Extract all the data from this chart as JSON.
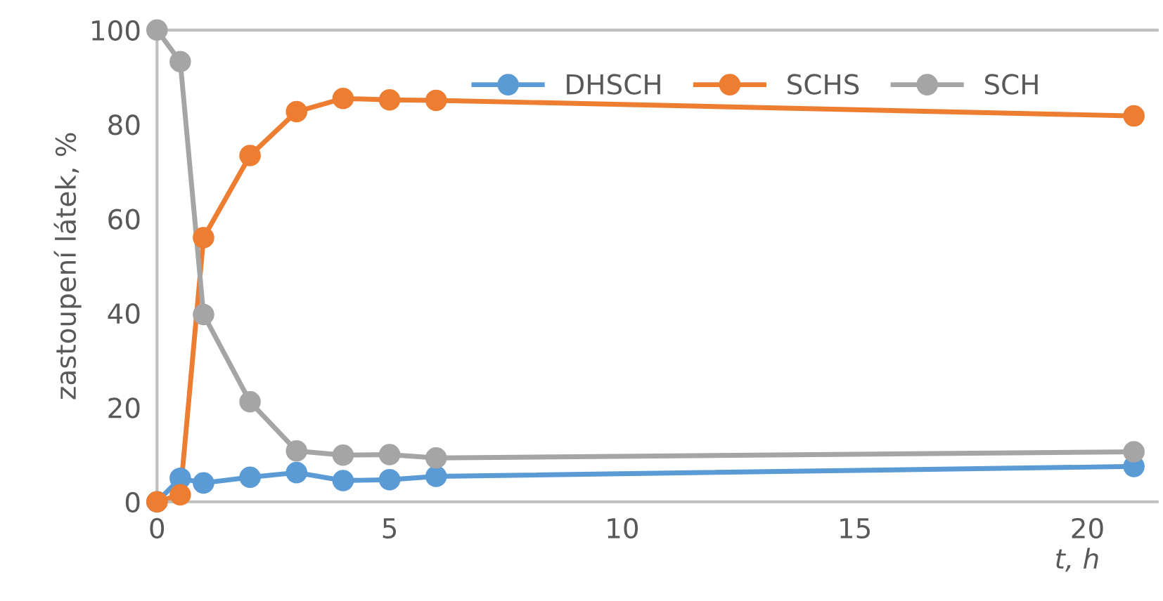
{
  "chart_data": {
    "type": "line",
    "xlabel": "t, h",
    "ylabel": "zastoupení látek, %",
    "x": [
      0,
      0.5,
      1,
      2,
      3,
      4,
      5,
      6,
      21
    ],
    "series": [
      {
        "name": "DHSCH",
        "color": "#5b9bd5",
        "values": [
          0,
          5,
          4,
          5.2,
          6.2,
          4.5,
          4.7,
          5.4,
          7.5
        ]
      },
      {
        "name": "SCHS",
        "color": "#ed7d31",
        "values": [
          0,
          1.5,
          56,
          73.4,
          82.7,
          85.5,
          85.2,
          85.1,
          81.8
        ]
      },
      {
        "name": "SCH",
        "color": "#a5a5a5",
        "values": [
          100,
          93.3,
          39.7,
          21.2,
          10.8,
          9.9,
          10,
          9.3,
          10.6
        ]
      }
    ],
    "xlim": [
      0,
      21.5
    ],
    "xticks": [
      0,
      5,
      10,
      15,
      20
    ],
    "ylim": [
      0,
      100
    ],
    "yticks": [
      0,
      20,
      40,
      60,
      80,
      100
    ],
    "grid": false,
    "legend": "top",
    "marker": "circle",
    "line_style": "solid"
  }
}
